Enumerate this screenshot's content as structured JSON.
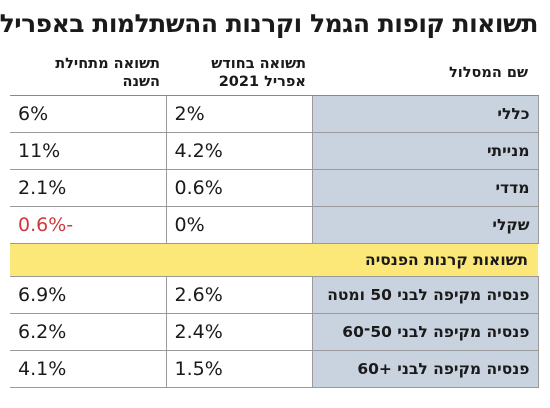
{
  "title": "תשואות קופות הגמל וקרנות ההשתלמות באפריל",
  "columns": {
    "name": "שם המסלול",
    "month": "תשואה בחודש\nאפריל 2021",
    "ytd": "תשואה מתחילת\nהשנה"
  },
  "rows": [
    {
      "name": "כללי",
      "month": "2%",
      "ytd": "6%"
    },
    {
      "name": "מנייתי",
      "month": "4.2%",
      "ytd": "11%"
    },
    {
      "name": "מדדי",
      "month": "0.6%",
      "ytd": "2.1%"
    },
    {
      "name": "שקלי",
      "month": "0%",
      "ytd": "-0.6%"
    }
  ],
  "section": "תשואות קרנות הפנסיה",
  "pension_rows": [
    {
      "name": "פנסיה מקיפה לבני 50 ומטה",
      "month": "2.6%",
      "ytd": "6.9%"
    },
    {
      "name": "פנסיה מקיפה לבני 50־60",
      "month": "2.4%",
      "ytd": "6.2%"
    },
    {
      "name": "פנסיה מקיפה לבני +60",
      "month": "1.5%",
      "ytd": "4.1%"
    }
  ],
  "colors": {
    "label_bg": "#c8d3df",
    "section_bg": "#fbe878",
    "negative": "#d0393b"
  }
}
